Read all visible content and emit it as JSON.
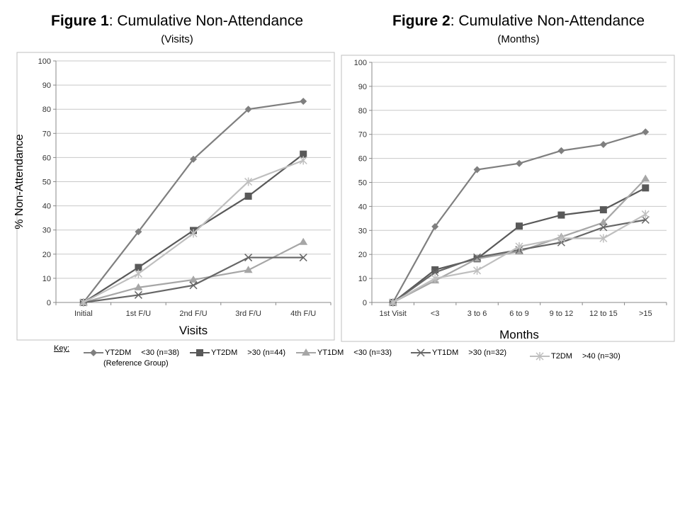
{
  "figures": [
    {
      "title_bold": "Figure 1",
      "title_rest": ": Cumulative Non-Attendance",
      "subtitle": "(Visits)"
    },
    {
      "title_bold": "Figure 2",
      "title_rest": ": Cumulative Non-Attendance",
      "subtitle": "(Months)"
    }
  ],
  "key": {
    "label": "Key:",
    "items": [
      {
        "name": "YT2DM",
        "desc": "<30 (n=38)",
        "marker": "diamond",
        "color": "#7f7f7f"
      },
      {
        "name": "YT2DM",
        "desc": ">30 (n=44)",
        "marker": "square",
        "color": "#595959"
      },
      {
        "name": "YT1DM",
        "desc": "<30 (n=33)",
        "marker": "triangle",
        "color": "#a6a6a6"
      },
      {
        "name": "YT1DM",
        "desc": ">30 (n=32)",
        "marker": "x",
        "color": "#666666"
      },
      {
        "name": "T2DM",
        "desc": ">40 (n=30)",
        "marker": "star",
        "color": "#bfbfbf"
      }
    ],
    "reference_note": "(Reference Group)"
  },
  "chart_data": [
    {
      "type": "line",
      "title": "Figure 1: Cumulative Non-Attendance",
      "subtitle": "(Visits)",
      "xlabel": "Visits",
      "ylabel": "% Non-Attendance",
      "ylim": [
        0,
        100
      ],
      "yticks": [
        0,
        10,
        20,
        30,
        40,
        50,
        60,
        70,
        80,
        90,
        100
      ],
      "grid": true,
      "categories": [
        "Initial",
        "1st F/U",
        "2nd F/U",
        "3rd F/U",
        "4th F/U"
      ],
      "series": [
        {
          "name": "YT2DM <30 (n=38)",
          "marker": "diamond",
          "color": "#7f7f7f",
          "values": [
            0,
            29.3,
            59.3,
            80,
            83.3
          ]
        },
        {
          "name": "YT2DM >30 (n=44)",
          "marker": "square",
          "color": "#595959",
          "values": [
            0,
            14.5,
            29.8,
            44,
            61.4
          ]
        },
        {
          "name": "YT1DM <30 (n=33)",
          "marker": "triangle",
          "color": "#a6a6a6",
          "values": [
            0,
            6.2,
            9.4,
            13.4,
            25
          ]
        },
        {
          "name": "YT1DM >30 (n=32)",
          "marker": "x",
          "color": "#666666",
          "values": [
            0,
            3.1,
            7.1,
            18.6,
            18.6
          ]
        },
        {
          "name": "T2DM >40 (n=30)",
          "marker": "star",
          "color": "#bfbfbf",
          "values": [
            0,
            11.9,
            28.6,
            50,
            58.8
          ]
        }
      ]
    },
    {
      "type": "line",
      "title": "Figure 2: Cumulative Non-Attendance",
      "subtitle": "(Months)",
      "xlabel": "Months",
      "ylabel": "",
      "ylim": [
        0,
        100
      ],
      "yticks": [
        0,
        10,
        20,
        30,
        40,
        50,
        60,
        70,
        80,
        90,
        100
      ],
      "grid": true,
      "categories": [
        "1st Visit",
        "<3",
        "3 to 6",
        "6 to 9",
        "9 to 12",
        "12 to 15",
        ">15"
      ],
      "series": [
        {
          "name": "YT2DM <30 (n=38)",
          "marker": "diamond",
          "color": "#7f7f7f",
          "values": [
            0,
            31.6,
            55.3,
            57.9,
            63.2,
            65.8,
            71
          ]
        },
        {
          "name": "YT2DM >30 (n=44)",
          "marker": "square",
          "color": "#595959",
          "values": [
            0,
            13.6,
            18.2,
            31.8,
            36.4,
            38.6,
            47.7
          ]
        },
        {
          "name": "YT1DM <30 (n=33)",
          "marker": "triangle",
          "color": "#a6a6a6",
          "values": [
            0,
            9.1,
            18.2,
            21.2,
            27.3,
            33.3,
            51.5
          ]
        },
        {
          "name": "YT1DM >30 (n=32)",
          "marker": "x",
          "color": "#666666",
          "values": [
            0,
            12.5,
            18.8,
            21.9,
            25,
            31.3,
            34.4
          ]
        },
        {
          "name": "T2DM >40 (n=30)",
          "marker": "star",
          "color": "#bfbfbf",
          "values": [
            0,
            10,
            13.3,
            23.3,
            26.7,
            26.7,
            36.7
          ]
        }
      ]
    }
  ]
}
